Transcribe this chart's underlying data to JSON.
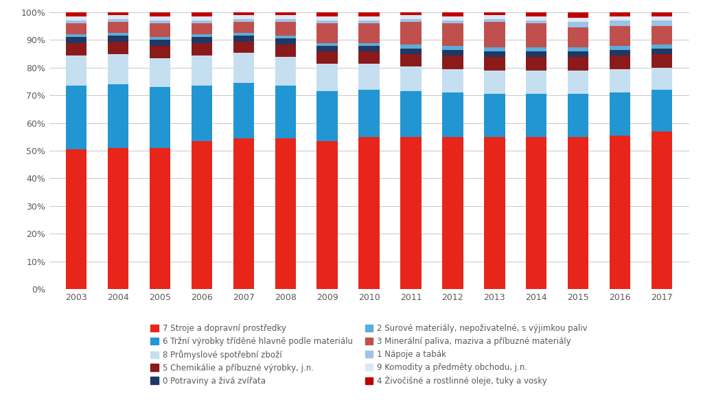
{
  "years": [
    2003,
    2004,
    2005,
    2006,
    2007,
    2008,
    2009,
    2010,
    2011,
    2012,
    2013,
    2014,
    2015,
    2016,
    2017
  ],
  "stack_order": [
    "7",
    "6",
    "8",
    "5",
    "0",
    "2",
    "3",
    "1",
    "9",
    "4"
  ],
  "series": {
    "7": [
      50.5,
      51.0,
      51.0,
      53.5,
      54.5,
      54.5,
      53.5,
      55.0,
      55.0,
      55.0,
      55.0,
      55.0,
      55.0,
      55.5,
      57.0
    ],
    "6": [
      23.0,
      23.0,
      22.0,
      20.0,
      20.0,
      19.0,
      18.0,
      17.0,
      16.5,
      16.0,
      15.5,
      15.5,
      15.5,
      15.5,
      15.0
    ],
    "8": [
      11.0,
      11.0,
      10.5,
      11.0,
      11.0,
      10.5,
      10.0,
      9.5,
      9.0,
      8.5,
      8.5,
      8.5,
      8.5,
      8.5,
      8.0
    ],
    "5": [
      4.5,
      4.5,
      4.5,
      4.5,
      4.0,
      4.5,
      4.5,
      4.5,
      4.5,
      5.0,
      5.0,
      5.0,
      5.0,
      5.0,
      5.0
    ],
    "0": [
      2.0,
      2.0,
      2.0,
      2.0,
      2.0,
      2.0,
      2.0,
      2.0,
      2.0,
      2.0,
      2.0,
      2.0,
      2.0,
      2.0,
      2.0
    ],
    "2": [
      1.0,
      1.0,
      1.0,
      1.0,
      1.0,
      1.0,
      1.0,
      1.0,
      1.5,
      1.5,
      1.5,
      1.5,
      1.5,
      1.5,
      1.5
    ],
    "3": [
      4.0,
      4.0,
      5.0,
      4.0,
      4.0,
      5.0,
      7.0,
      7.0,
      8.0,
      8.0,
      9.0,
      8.5,
      7.0,
      7.0,
      6.5
    ],
    "1": [
      1.0,
      1.0,
      1.0,
      1.0,
      1.0,
      1.0,
      1.0,
      1.0,
      1.0,
      1.0,
      1.0,
      1.0,
      2.0,
      2.0,
      2.0
    ],
    "9": [
      1.5,
      1.5,
      1.5,
      1.5,
      1.5,
      1.5,
      1.5,
      1.5,
      1.5,
      1.5,
      1.5,
      1.5,
      1.5,
      1.5,
      1.5
    ],
    "4": [
      1.5,
      1.0,
      1.5,
      1.5,
      1.0,
      1.0,
      1.5,
      1.5,
      2.0,
      2.5,
      1.5,
      1.5,
      2.0,
      2.0,
      1.5
    ]
  },
  "colors": {
    "7": "#e8251a",
    "6": "#2196d3",
    "8": "#c5dff0",
    "5": "#8b1a1a",
    "0": "#1f3864",
    "2": "#5badd9",
    "3": "#c0504d",
    "1": "#9dc3e6",
    "9": "#dce8f5",
    "4": "#c00000"
  },
  "legend_labels": {
    "7": "7 Stroje a dopravní prostředky",
    "6": "6 Tržní výrobky tříděné hlavně podle materiálu",
    "8": "8 Průmyslové spotřební zboží",
    "5": "5 Chemikálie a příbuzné výrobky, j.n.",
    "0": "0 Potraviny a živá zvířata",
    "2": "2 Surové materiály, nepoživatelné, s výjimkou paliv",
    "3": "3 Minerální paliva, maziva a příbuzné materiály",
    "1": "1 Nápoje a tabák",
    "9": "9 Komodity a předměty obchodu, j.n.",
    "4": "4 Živočišné a rostlinné oleje, tuky a vosky"
  },
  "legend_left_order": [
    "7",
    "8",
    "0",
    "3",
    "9"
  ],
  "legend_right_order": [
    "6",
    "5",
    "2",
    "1",
    "4"
  ],
  "yticks": [
    0,
    10,
    20,
    30,
    40,
    50,
    60,
    70,
    80,
    90,
    100
  ],
  "bar_width": 0.5,
  "background_color": "#ffffff",
  "grid_color": "#c8c8c8",
  "tick_color": "#595959",
  "font_size_ticks": 9,
  "font_size_legend": 8.5
}
